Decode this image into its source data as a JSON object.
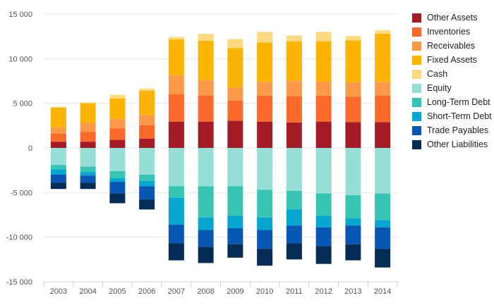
{
  "chart_data": {
    "type": "bar",
    "stacked": true,
    "categories": [
      "2003",
      "2004",
      "2005",
      "2006",
      "2007",
      "2008",
      "2009",
      "2010",
      "2011",
      "2012",
      "2013",
      "2014"
    ],
    "ylim": [
      -15000,
      15000
    ],
    "yticks": [
      -15000,
      -10000,
      -5000,
      0,
      5000,
      10000,
      15000
    ],
    "ytick_labels": [
      "-15 000",
      "-10 000",
      "-5 000",
      "0",
      "5 000",
      "10 000",
      "15 000"
    ],
    "grid": true,
    "legend_position": "right",
    "series": [
      {
        "name": "Other Assets",
        "color": "#a31b24",
        "values": [
          700,
          700,
          900,
          1050,
          2950,
          2950,
          3050,
          2950,
          2850,
          2950,
          2900,
          2900
        ]
      },
      {
        "name": "Inventories",
        "color": "#fb6a2b",
        "values": [
          900,
          1100,
          1300,
          1500,
          3050,
          2950,
          2250,
          2900,
          2950,
          2900,
          2850,
          3000
        ]
      },
      {
        "name": "Receivables",
        "color": "#fd9a49",
        "values": [
          700,
          1000,
          1050,
          1150,
          2150,
          1700,
          1500,
          1550,
          1750,
          1600,
          1600,
          1500
        ]
      },
      {
        "name": "Fixed Assets",
        "color": "#fcb403",
        "values": [
          2200,
          2200,
          2300,
          2700,
          4000,
          4400,
          4400,
          4400,
          4400,
          4500,
          4700,
          5400
        ]
      },
      {
        "name": "Cash",
        "color": "#fed980",
        "values": [
          100,
          100,
          400,
          250,
          300,
          800,
          1000,
          1200,
          650,
          1050,
          500,
          400
        ]
      },
      {
        "name": "Equity",
        "color": "#95dfd7",
        "values": [
          -1900,
          -2100,
          -2600,
          -3000,
          -4300,
          -4300,
          -4300,
          -4700,
          -4800,
          -5100,
          -5300,
          -5100
        ]
      },
      {
        "name": "Long-Term Debt",
        "color": "#38c4b2",
        "values": [
          -500,
          -600,
          -800,
          -700,
          -1300,
          -3500,
          -3300,
          -3100,
          -2100,
          -2500,
          -2600,
          -3000
        ]
      },
      {
        "name": "Short-Term Debt",
        "color": "#06a6d1",
        "values": [
          -600,
          -400,
          -400,
          -600,
          -3000,
          -1400,
          -1400,
          -1400,
          -1800,
          -1300,
          -800,
          -800
        ]
      },
      {
        "name": "Trade Payables",
        "color": "#0857b2",
        "values": [
          -900,
          -800,
          -1300,
          -1500,
          -2100,
          -1900,
          -1800,
          -2100,
          -2000,
          -2100,
          -2100,
          -2400
        ]
      },
      {
        "name": "Other Liabilities",
        "color": "#052c55",
        "values": [
          -700,
          -700,
          -1100,
          -1100,
          -1900,
          -1800,
          -1500,
          -1900,
          -1800,
          -2000,
          -1800,
          -2100
        ]
      }
    ]
  }
}
